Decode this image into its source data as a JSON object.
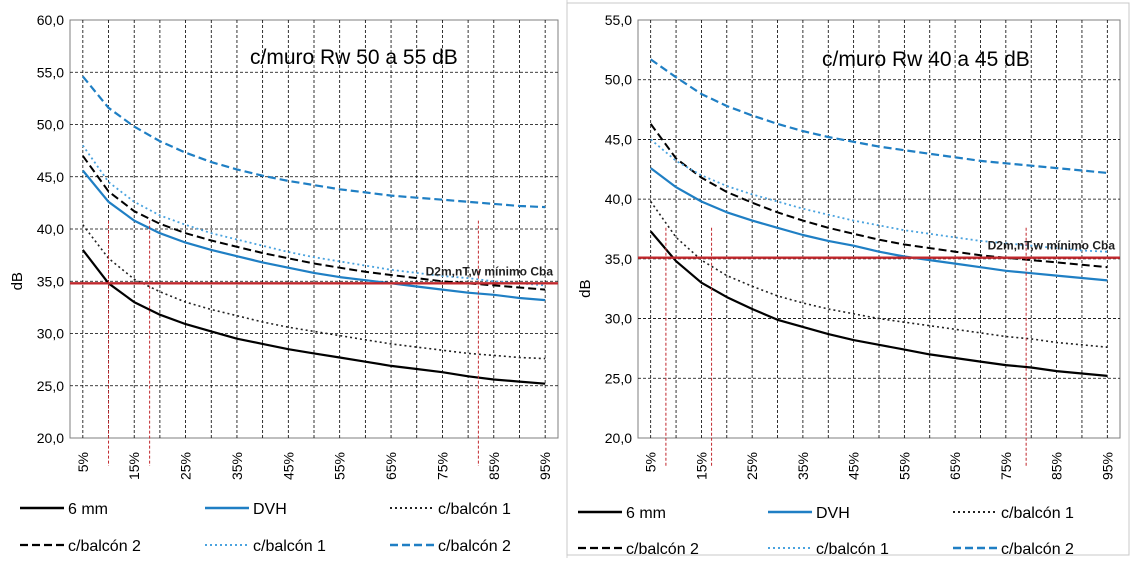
{
  "chart_data": [
    {
      "type": "line",
      "title": "c/muro Rw 50 a 55 dB",
      "ylabel": "dB",
      "xlabel": "",
      "ylim": [
        20,
        60
      ],
      "yticks": [
        "20,0",
        "25,0",
        "30,0",
        "35,0",
        "40,0",
        "45,0",
        "50,0",
        "55,0",
        "60,0"
      ],
      "x": [
        5,
        10,
        15,
        20,
        25,
        30,
        35,
        40,
        45,
        50,
        55,
        60,
        65,
        70,
        75,
        80,
        85,
        90,
        95
      ],
      "xtick_labels": [
        "5%",
        "15%",
        "25%",
        "35%",
        "45%",
        "55%",
        "65%",
        "75%",
        "85%",
        "95%"
      ],
      "grid": true,
      "legend_placement": "bottom",
      "series": [
        {
          "name": "6 mm",
          "style": "solid",
          "color": "#000000",
          "width": 2.2,
          "values": [
            38.0,
            34.8,
            33.0,
            31.8,
            30.9,
            30.2,
            29.5,
            29.0,
            28.5,
            28.1,
            27.7,
            27.3,
            26.9,
            26.6,
            26.3,
            25.9,
            25.6,
            25.4,
            25.2
          ]
        },
        {
          "name": "DVH",
          "style": "solid",
          "color": "#1f7fc4",
          "width": 2.2,
          "values": [
            45.6,
            42.6,
            40.8,
            39.6,
            38.7,
            38.0,
            37.4,
            36.8,
            36.3,
            35.8,
            35.4,
            35.1,
            34.8,
            34.5,
            34.2,
            33.9,
            33.7,
            33.4,
            33.2
          ]
        },
        {
          "name": "c/balcón 1",
          "style": "dotted",
          "color": "#222222",
          "width": 1.6,
          "values": [
            40.4,
            37.2,
            35.2,
            34.0,
            33.0,
            32.3,
            31.7,
            31.1,
            30.6,
            30.2,
            29.8,
            29.4,
            29.0,
            28.7,
            28.4,
            28.1,
            27.9,
            27.7,
            27.6
          ]
        },
        {
          "name": "c/balcón 2",
          "style": "dashed",
          "color": "#000000",
          "width": 2.0,
          "values": [
            47.0,
            43.6,
            41.7,
            40.5,
            39.6,
            38.9,
            38.3,
            37.7,
            37.2,
            36.7,
            36.3,
            35.9,
            35.6,
            35.3,
            35.0,
            34.8,
            34.6,
            34.4,
            34.2
          ]
        },
        {
          "name": "c/balcón 1",
          "style": "dotted",
          "color": "#4aa3df",
          "width": 1.8,
          "values": [
            48.0,
            44.5,
            42.6,
            41.3,
            40.4,
            39.6,
            39.0,
            38.4,
            37.8,
            37.3,
            36.9,
            36.5,
            36.1,
            35.8,
            35.5,
            35.3,
            35.0,
            34.8,
            34.6
          ]
        },
        {
          "name": "c/balcón 2",
          "style": "dashed",
          "color": "#1f7fc4",
          "width": 2.2,
          "values": [
            54.6,
            51.6,
            49.8,
            48.4,
            47.3,
            46.4,
            45.7,
            45.1,
            44.6,
            44.2,
            43.8,
            43.5,
            43.2,
            43.0,
            42.8,
            42.6,
            42.4,
            42.2,
            42.1
          ]
        }
      ],
      "threshold": {
        "value": 34.8,
        "label": "D2m,nT,w   mínimo Cba",
        "color": "#c0282d"
      },
      "vlines": [
        10,
        18,
        82
      ],
      "vline_color": "#c0282d"
    },
    {
      "type": "line",
      "title": "c/muro Rw 40 a 45 dB",
      "ylabel": "dB",
      "xlabel": "",
      "ylim": [
        20,
        55
      ],
      "yticks": [
        "20,0",
        "25,0",
        "30,0",
        "35,0",
        "40,0",
        "45,0",
        "50,0",
        "55,0"
      ],
      "x": [
        5,
        10,
        15,
        20,
        25,
        30,
        35,
        40,
        45,
        50,
        55,
        60,
        65,
        70,
        75,
        80,
        85,
        90,
        95
      ],
      "xtick_labels": [
        "5%",
        "15%",
        "25%",
        "35%",
        "45%",
        "55%",
        "65%",
        "75%",
        "85%",
        "95%"
      ],
      "grid": true,
      "legend_placement": "bottom",
      "series": [
        {
          "name": "6 mm",
          "style": "solid",
          "color": "#000000",
          "width": 2.2,
          "values": [
            37.3,
            34.8,
            33.0,
            31.8,
            30.8,
            29.9,
            29.3,
            28.7,
            28.2,
            27.8,
            27.4,
            27.0,
            26.7,
            26.4,
            26.1,
            25.9,
            25.6,
            25.4,
            25.2
          ]
        },
        {
          "name": "DVH",
          "style": "solid",
          "color": "#1f7fc4",
          "width": 2.2,
          "values": [
            42.6,
            41.0,
            39.8,
            38.9,
            38.2,
            37.6,
            37.0,
            36.5,
            36.1,
            35.6,
            35.2,
            34.9,
            34.6,
            34.3,
            34.0,
            33.8,
            33.6,
            33.4,
            33.2
          ]
        },
        {
          "name": "c/balcón 1",
          "style": "dotted",
          "color": "#222222",
          "width": 1.6,
          "values": [
            39.8,
            36.8,
            34.9,
            33.6,
            32.7,
            31.9,
            31.3,
            30.8,
            30.4,
            30.0,
            29.7,
            29.4,
            29.1,
            28.8,
            28.5,
            28.3,
            28.0,
            27.8,
            27.6
          ]
        },
        {
          "name": "c/balcón 2",
          "style": "dashed",
          "color": "#000000",
          "width": 2.0,
          "values": [
            46.3,
            43.4,
            41.8,
            40.6,
            39.7,
            38.9,
            38.2,
            37.6,
            37.1,
            36.6,
            36.2,
            35.9,
            35.6,
            35.3,
            35.1,
            34.9,
            34.7,
            34.5,
            34.3
          ]
        },
        {
          "name": "c/balcón 1",
          "style": "dotted",
          "color": "#4aa3df",
          "width": 1.8,
          "values": [
            45.0,
            43.2,
            42.0,
            41.1,
            40.4,
            39.8,
            39.2,
            38.7,
            38.2,
            37.8,
            37.4,
            37.1,
            36.8,
            36.5,
            36.3,
            36.1,
            35.9,
            35.7,
            35.6
          ]
        },
        {
          "name": "c/balcón 2",
          "style": "dashed",
          "color": "#1f7fc4",
          "width": 2.2,
          "values": [
            51.7,
            50.2,
            48.8,
            47.8,
            47.0,
            46.3,
            45.7,
            45.2,
            44.8,
            44.4,
            44.1,
            43.8,
            43.5,
            43.2,
            43.0,
            42.8,
            42.6,
            42.4,
            42.2
          ]
        }
      ],
      "threshold": {
        "value": 35.1,
        "label": "D2m,nT,w   mínimo Cba",
        "color": "#c0282d"
      },
      "vlines": [
        8,
        17,
        79
      ],
      "vline_color": "#c0282d"
    }
  ]
}
